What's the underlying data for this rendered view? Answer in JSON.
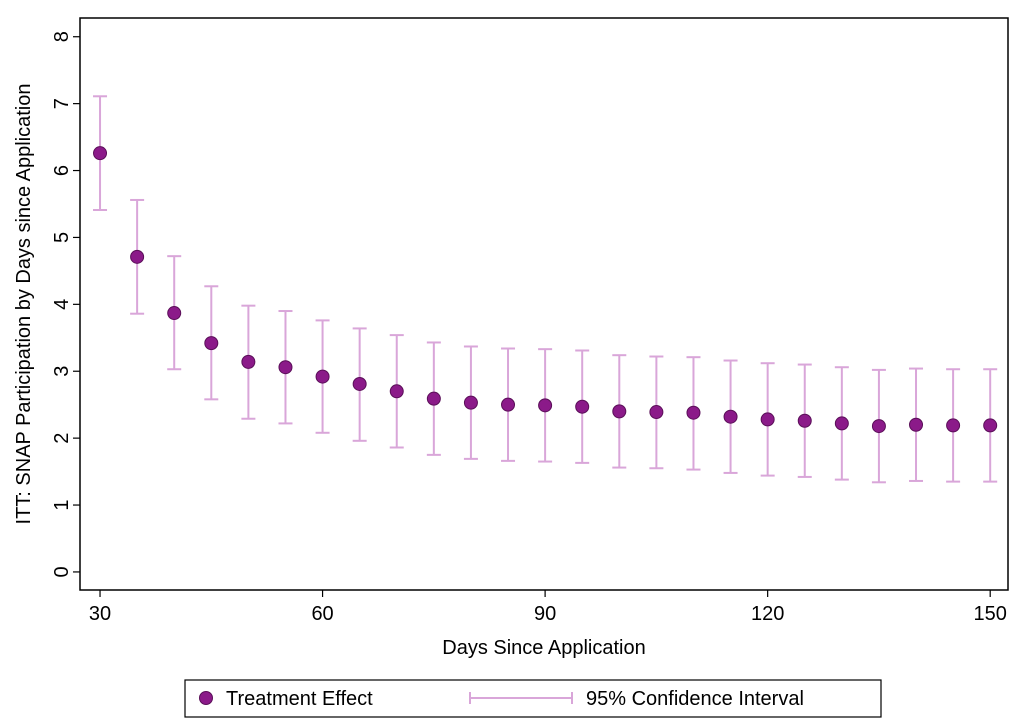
{
  "chart_data": {
    "type": "errorbar",
    "x_label": "Days Since Application",
    "y_label": "ITT: SNAP Participation by Days since Application",
    "x": [
      30,
      35,
      40,
      45,
      50,
      55,
      60,
      65,
      70,
      75,
      80,
      85,
      90,
      95,
      100,
      105,
      110,
      115,
      120,
      125,
      130,
      135,
      140,
      145,
      150
    ],
    "series": [
      {
        "name": "Treatment Effect",
        "color": "#8b1a89",
        "values": [
          6.26,
          4.71,
          3.87,
          3.42,
          3.14,
          3.06,
          2.92,
          2.81,
          2.7,
          2.59,
          2.53,
          2.5,
          2.49,
          2.47,
          2.4,
          2.39,
          2.38,
          2.32,
          2.28,
          2.26,
          2.22,
          2.18,
          2.2,
          2.19,
          2.19
        ]
      }
    ],
    "interval": {
      "name": "95% Confidence Interval",
      "color": "#d9a6d9",
      "lower": [
        5.41,
        3.86,
        3.03,
        2.58,
        2.29,
        2.22,
        2.08,
        1.96,
        1.86,
        1.75,
        1.69,
        1.66,
        1.65,
        1.63,
        1.56,
        1.55,
        1.53,
        1.48,
        1.44,
        1.42,
        1.38,
        1.34,
        1.36,
        1.35,
        1.35
      ],
      "upper": [
        7.11,
        5.56,
        4.72,
        4.27,
        3.98,
        3.9,
        3.76,
        3.64,
        3.54,
        3.43,
        3.37,
        3.34,
        3.33,
        3.31,
        3.24,
        3.22,
        3.21,
        3.16,
        3.12,
        3.1,
        3.06,
        3.02,
        3.04,
        3.03,
        3.03
      ]
    },
    "xlim": [
      27.3,
      152.4
    ],
    "ylim": [
      -0.27,
      8.28
    ],
    "xticks": [
      30,
      60,
      90,
      120,
      150
    ],
    "yticks": [
      0,
      1,
      2,
      3,
      4,
      5,
      6,
      7,
      8
    ],
    "grid": false
  }
}
